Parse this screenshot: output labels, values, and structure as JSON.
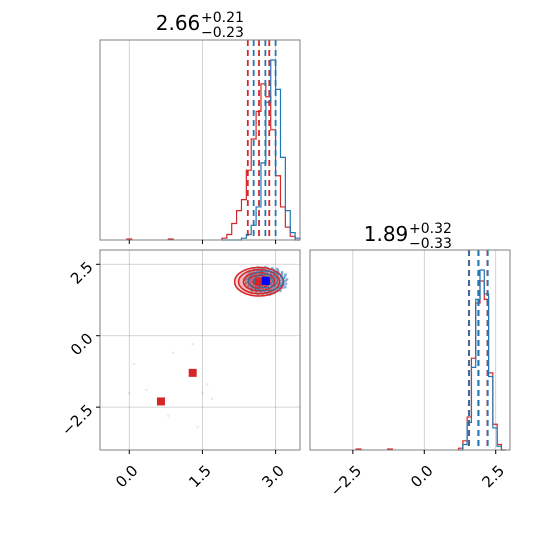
{
  "chart_data": {
    "type": "corner",
    "grid": true,
    "colors": {
      "blue": "#1f77b4",
      "red": "#d62728",
      "grid": "#b0b0b0",
      "axis": "#7f7f7f"
    },
    "x_param": {
      "title_value": "2.66",
      "title_plus": "+0.21",
      "title_minus": "−0.23",
      "range": [
        -0.6,
        3.5
      ],
      "ticks": [
        0.0,
        1.5,
        3.0
      ],
      "tick_labels": [
        "0.0",
        "1.5",
        "3.0"
      ],
      "histogram": {
        "blue": {
          "bins": [
            1.9,
            2.0,
            2.1,
            2.2,
            2.3,
            2.4,
            2.5,
            2.6,
            2.7,
            2.8,
            2.9,
            3.0,
            3.1,
            3.2,
            3.3,
            3.4
          ],
          "counts": [
            0,
            0,
            0,
            0,
            1,
            3,
            8,
            18,
            42,
            75,
            98,
            82,
            45,
            16,
            4,
            1
          ]
        },
        "red": {
          "bins": [
            1.9,
            2.0,
            2.1,
            2.2,
            2.3,
            2.4,
            2.5,
            2.6,
            2.7,
            2.8,
            2.9,
            3.0,
            3.1,
            3.2,
            3.3,
            3.4
          ],
          "counts": [
            1,
            3,
            9,
            16,
            22,
            38,
            55,
            70,
            85,
            78,
            60,
            35,
            18,
            7,
            2,
            0
          ],
          "outliers": [
            [
              0.0,
              1
            ],
            [
              0.85,
              1
            ]
          ]
        }
      },
      "quantile_lines": {
        "red": [
          2.43,
          2.66,
          2.87
        ],
        "blue": [
          2.55,
          2.79,
          3.0
        ]
      }
    },
    "y_param": {
      "title_value": "1.89",
      "title_plus": "+0.32",
      "title_minus": "−0.33",
      "range": [
        -4.0,
        3.0
      ],
      "ticks": [
        -2.5,
        0.0,
        2.5
      ],
      "tick_labels": [
        "−2.5",
        "0.0",
        "2.5"
      ],
      "histogram": {
        "blue": {
          "bins": [
            1.2,
            1.35,
            1.5,
            1.65,
            1.8,
            1.95,
            2.1,
            2.25,
            2.4,
            2.55,
            2.7
          ],
          "counts": [
            0,
            3,
            15,
            45,
            82,
            98,
            85,
            40,
            12,
            2,
            0
          ]
        },
        "red": {
          "bins": [
            1.2,
            1.35,
            1.5,
            1.65,
            1.8,
            1.95,
            2.1,
            2.25,
            2.4,
            2.55,
            2.7
          ],
          "counts": [
            1,
            5,
            18,
            50,
            80,
            92,
            82,
            42,
            14,
            3,
            0
          ],
          "outliers": [
            [
              -2.3,
              1
            ],
            [
              -1.2,
              1
            ]
          ]
        }
      },
      "quantile_lines": {
        "red": [
          1.56,
          1.89,
          2.21
        ],
        "blue": [
          1.57,
          1.9,
          2.22
        ]
      }
    },
    "joint": {
      "blue_center": [
        2.8,
        1.92
      ],
      "red_center": [
        2.66,
        1.89
      ],
      "red_contours": [
        [
          0.5,
          0.5
        ],
        [
          0.42,
          0.42
        ],
        [
          0.32,
          0.32
        ],
        [
          0.22,
          0.22
        ],
        [
          0.12,
          0.12
        ]
      ],
      "blue_contours": [
        [
          0.36,
          0.34
        ],
        [
          0.24,
          0.24
        ],
        [
          0.14,
          0.14
        ]
      ],
      "red_outlier_markers": [
        [
          1.3,
          -1.3
        ],
        [
          0.65,
          -2.3
        ]
      ],
      "faint_points": [
        [
          0.1,
          -1.0
        ],
        [
          0.35,
          -1.9
        ],
        [
          0.9,
          -0.6
        ],
        [
          1.3,
          -0.3
        ],
        [
          1.5,
          -2.0
        ],
        [
          1.6,
          -1.7
        ],
        [
          1.7,
          -2.2
        ],
        [
          1.4,
          -3.2
        ],
        [
          0.0,
          -2.0
        ],
        [
          0.8,
          -2.8
        ]
      ]
    }
  }
}
